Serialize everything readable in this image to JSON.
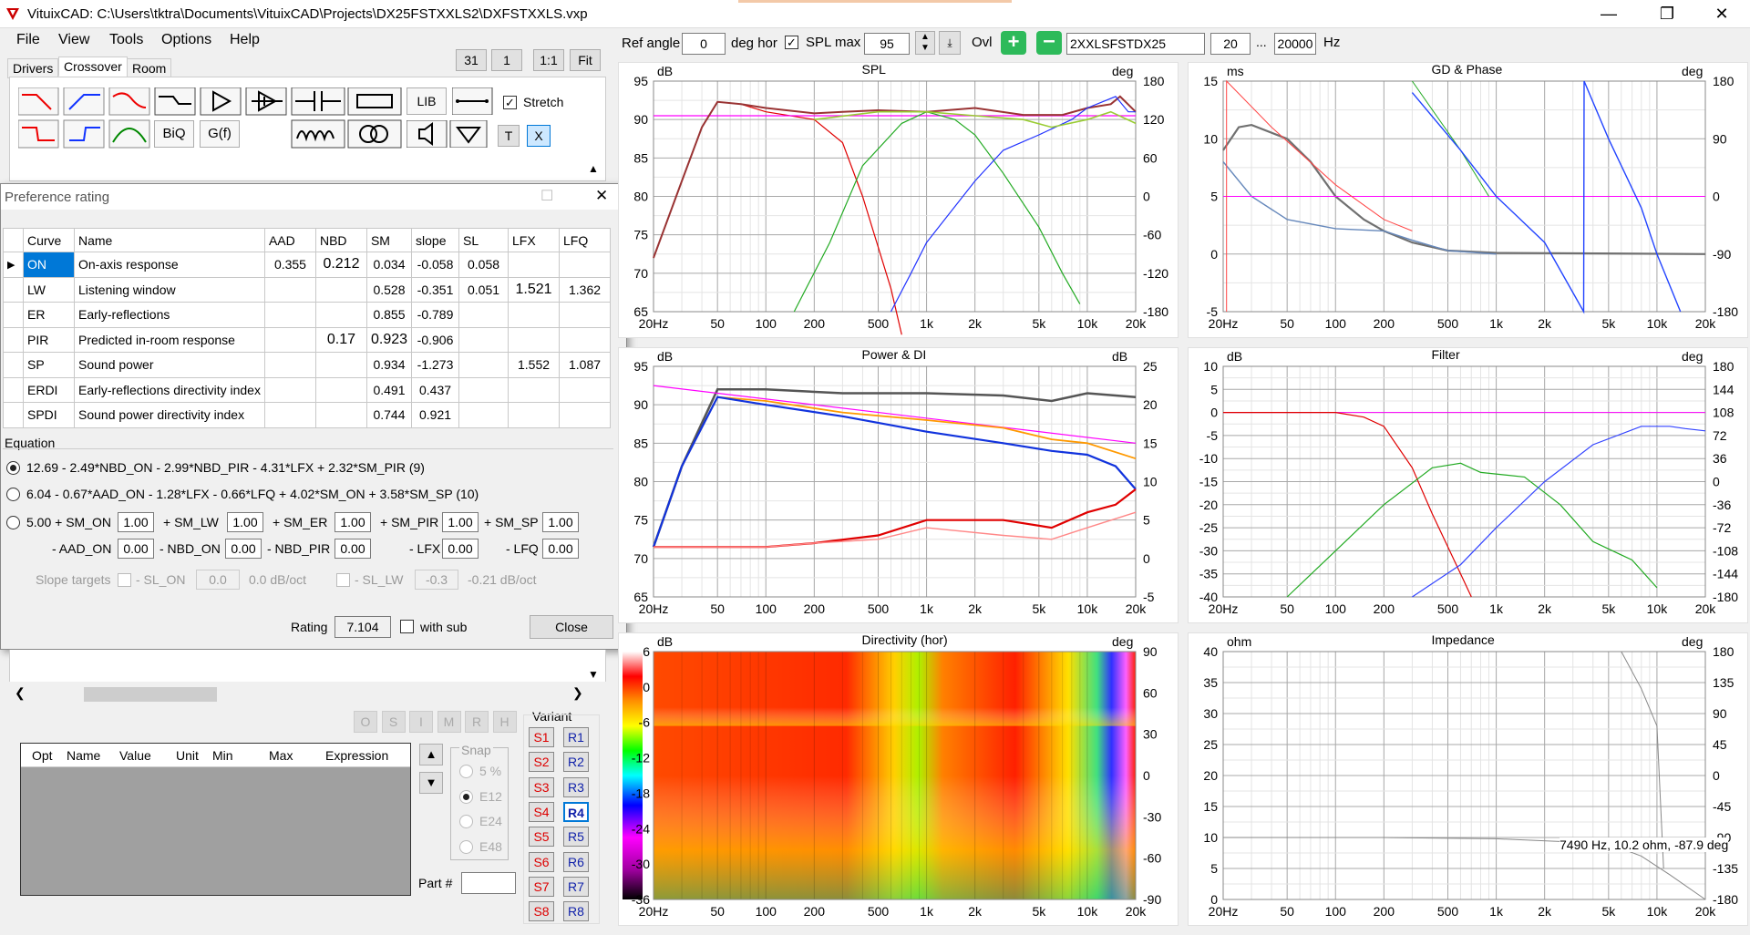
{
  "window": {
    "title": "VituixCAD: C:\\Users\\tktra\\Documents\\VituixCAD\\Projects\\DX25FSTXXLS2\\DXFSTXXLS.vxp"
  },
  "menu": [
    "File",
    "View",
    "Tools",
    "Options",
    "Help"
  ],
  "toolbar": {
    "zoom_labels": [
      "31",
      "1",
      "1:1",
      "Fit"
    ],
    "tabs": [
      "Drivers",
      "Crossover",
      "Room"
    ],
    "lib_label": "LIB",
    "biq_label": "BiQ",
    "gf_label": "G(f)",
    "stretch_label": "Stretch",
    "t_label": "T",
    "x_label": "X"
  },
  "top_controls": {
    "ref_angle_label": "Ref angle",
    "ref_angle_value": "0",
    "deg_hor_label": "deg hor",
    "spl_max_label": "SPL max",
    "spl_max_value": "95",
    "ovl_label": "Ovl",
    "overlay_name": "2XXLSFSTDX25",
    "freq_min": "20",
    "ellipsis": "...",
    "freq_max": "20000",
    "hz_label": "Hz"
  },
  "pref": {
    "title": "Preference rating",
    "columns": [
      "Curve",
      "Name",
      "AAD",
      "NBD",
      "SM",
      "slope",
      "SL",
      "LFX",
      "LFQ"
    ],
    "rows": [
      {
        "curve": "ON",
        "name": "On-axis response",
        "aad": "0.355",
        "nbd": "0.212",
        "sm": "0.034",
        "slope": "-0.058",
        "sl": "0.058",
        "lfx": "",
        "lfq": ""
      },
      {
        "curve": "LW",
        "name": "Listening window",
        "aad": "",
        "nbd": "",
        "sm": "0.528",
        "slope": "-0.351",
        "sl": "0.051",
        "lfx": "1.521",
        "lfq": "1.362"
      },
      {
        "curve": "ER",
        "name": "Early-reflections",
        "aad": "",
        "nbd": "",
        "sm": "0.855",
        "slope": "-0.789",
        "sl": "",
        "lfx": "",
        "lfq": ""
      },
      {
        "curve": "PIR",
        "name": "Predicted in-room response",
        "aad": "",
        "nbd": "0.17",
        "sm": "0.923",
        "slope": "-0.906",
        "sl": "",
        "lfx": "",
        "lfq": ""
      },
      {
        "curve": "SP",
        "name": "Sound power",
        "aad": "",
        "nbd": "",
        "sm": "0.934",
        "slope": "-1.273",
        "sl": "",
        "lfx": "1.552",
        "lfq": "1.087"
      },
      {
        "curve": "ERDI",
        "name": "Early-reflections directivity index",
        "aad": "",
        "nbd": "",
        "sm": "0.491",
        "slope": "0.437",
        "sl": "",
        "lfx": "",
        "lfq": ""
      },
      {
        "curve": "SPDI",
        "name": "Sound power directivity index",
        "aad": "",
        "nbd": "",
        "sm": "0.744",
        "slope": "0.921",
        "sl": "",
        "lfx": "",
        "lfq": ""
      }
    ],
    "equation_label": "Equation",
    "eq1": "12.69 - 2.49*NBD_ON - 2.99*NBD_PIR - 4.31*LFX + 2.32*SM_PIR (9)",
    "eq2": "6.04 - 0.67*AAD_ON - 1.28*LFX - 0.66*LFQ + 4.02*SM_ON + 3.58*SM_SP (10)",
    "eq3_prefix": "5.00 + SM_ON",
    "eq3_terms": [
      {
        "label": "+ SM_LW",
        "value": "1.00"
      },
      {
        "label": "+ SM_ER",
        "value": "1.00"
      },
      {
        "label": "+ SM_PIR",
        "value": "1.00"
      },
      {
        "label": "+ SM_SP",
        "value": "1.00"
      }
    ],
    "eq3_sm_on": "1.00",
    "eq3_row2": [
      {
        "label": "- AAD_ON",
        "value": "0.00"
      },
      {
        "label": "- NBD_ON",
        "value": "0.00"
      },
      {
        "label": "- NBD_PIR",
        "value": "0.00"
      },
      {
        "label": "- LFX",
        "value": "0.00"
      },
      {
        "label": "- LFQ",
        "value": "0.00"
      }
    ],
    "slope_targets_label": "Slope targets",
    "sl_on_label": "- SL_ON",
    "sl_on_value": "0.0",
    "sl_on_unit": "0.0 dB/oct",
    "sl_lw_label": "- SL_LW",
    "sl_lw_value": "-0.3",
    "sl_lw_unit": "-0.21 dB/oct",
    "rating_label": "Rating",
    "rating_value": "7.104",
    "with_sub_label": "with sub",
    "close_label": "Close"
  },
  "optimizer": {
    "columns": [
      "Opt",
      "Name",
      "Value",
      "Unit",
      "Min",
      "Max",
      "Expression"
    ],
    "disabled_buttons": [
      "O",
      "S",
      "I",
      "M",
      "R",
      "H"
    ],
    "snap_label": "Snap",
    "snap_options": [
      "5 %",
      "E12",
      "E24",
      "E48"
    ],
    "snap_selected": "E12",
    "variant_label": "Variant",
    "variants_s": [
      "S1",
      "S2",
      "S3",
      "S4",
      "S5",
      "S6",
      "S7",
      "S8"
    ],
    "variants_r": [
      "R1",
      "R2",
      "R3",
      "R4",
      "R5",
      "R6",
      "R7",
      "R8"
    ],
    "selected_variant": "R4",
    "part_label": "Part #"
  },
  "freq_ticks": [
    "20Hz",
    "50",
    "100",
    "200",
    "500",
    "1k",
    "2k",
    "5k",
    "10k",
    "20k"
  ],
  "charts": {
    "spl": {
      "title": "SPL",
      "left_unit": "dB",
      "right_unit": "deg",
      "left_ticks": [
        "95",
        "90",
        "85",
        "80",
        "75",
        "70",
        "65"
      ],
      "right_ticks": [
        "180",
        "120",
        "60",
        "0",
        "-60",
        "-120",
        "-180"
      ]
    },
    "gd": {
      "title": "GD & Phase",
      "left_unit": "ms",
      "right_unit": "deg",
      "left_ticks": [
        "15",
        "10",
        "5",
        "0",
        "-5"
      ],
      "right_ticks": [
        "180",
        "90",
        "0",
        "-90",
        "-180"
      ]
    },
    "power": {
      "title": "Power & DI",
      "left_unit": "dB",
      "right_unit": "dB",
      "left_ticks": [
        "95",
        "90",
        "85",
        "80",
        "75",
        "70",
        "65"
      ],
      "right_ticks": [
        "25",
        "20",
        "15",
        "10",
        "5",
        "0",
        "-5"
      ]
    },
    "filter": {
      "title": "Filter",
      "left_unit": "dB",
      "right_unit": "deg",
      "left_ticks": [
        "10",
        "5",
        "0",
        "-5",
        "-10",
        "-15",
        "-20",
        "-25",
        "-30",
        "-35",
        "-40"
      ],
      "right_ticks": [
        "180",
        "144",
        "108",
        "72",
        "36",
        "0",
        "-36",
        "-72",
        "-108",
        "-144",
        "-180"
      ]
    },
    "dir": {
      "title": "Directivity (hor)",
      "left_unit": "dB",
      "right_unit": "deg",
      "left_ticks": [
        "6",
        "0",
        "-6",
        "-12",
        "-18",
        "-24",
        "-30",
        "-36"
      ],
      "right_ticks": [
        "90",
        "60",
        "30",
        "0",
        "-30",
        "-60",
        "-90"
      ]
    },
    "imp": {
      "title": "Impedance",
      "left_unit": "ohm",
      "right_unit": "deg",
      "left_ticks": [
        "40",
        "35",
        "30",
        "25",
        "20",
        "15",
        "10",
        "5",
        "0"
      ],
      "right_ticks": [
        "180",
        "135",
        "90",
        "45",
        "0",
        "-45",
        "-90",
        "-135",
        "-180"
      ],
      "readout": "7490 Hz, 10.2 ohm, -87.9 deg"
    }
  }
}
